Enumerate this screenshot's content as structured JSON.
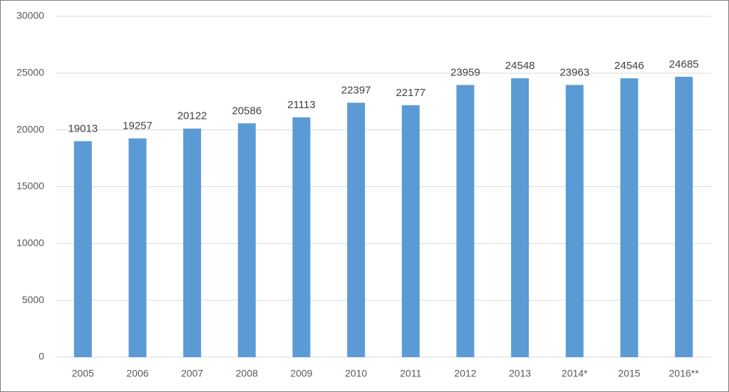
{
  "chart_data": {
    "type": "bar",
    "categories": [
      "2005",
      "2006",
      "2007",
      "2008",
      "2009",
      "2010",
      "2011",
      "2012",
      "2013",
      "2014*",
      "2015",
      "2016**"
    ],
    "values": [
      19013,
      19257,
      20122,
      20586,
      21113,
      22397,
      22177,
      23959,
      24548,
      23963,
      24546,
      24685
    ],
    "color": "#5b9bd5",
    "ylim": [
      0,
      30000
    ],
    "yticks": [
      0,
      5000,
      10000,
      15000,
      20000,
      25000,
      30000
    ],
    "grid": true
  }
}
